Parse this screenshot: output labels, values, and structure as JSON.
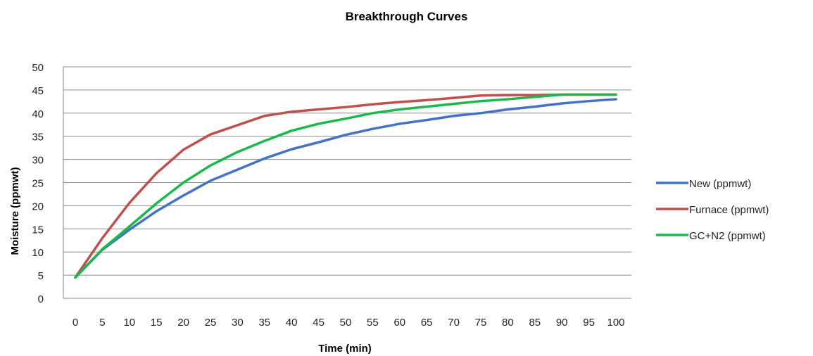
{
  "chart_data": {
    "type": "line",
    "title": "Breakthrough Curves",
    "xlabel": "Time (min)",
    "ylabel": "Moisture (ppmwt)",
    "x": [
      0,
      5,
      10,
      15,
      20,
      25,
      30,
      35,
      40,
      45,
      50,
      55,
      60,
      65,
      70,
      75,
      80,
      85,
      90,
      95,
      100
    ],
    "xlim": [
      0,
      100
    ],
    "ylim": [
      0,
      50
    ],
    "y_ticks": [
      0,
      5,
      10,
      15,
      20,
      25,
      30,
      35,
      40,
      45,
      50
    ],
    "grid": "horizontal",
    "legend_position": "right",
    "series": [
      {
        "name": "New (ppmwt)",
        "color": "#4472C4",
        "values": [
          4.5,
          10.5,
          14.8,
          18.8,
          22.2,
          25.4,
          27.8,
          30.2,
          32.2,
          33.7,
          35.3,
          36.6,
          37.7,
          38.5,
          39.4,
          40.0,
          40.8,
          41.4,
          42.1,
          42.6,
          43.0
        ]
      },
      {
        "name": "Furnace (ppmwt)",
        "color": "#C0504D",
        "values": [
          4.5,
          13.0,
          20.6,
          27.0,
          32.1,
          35.4,
          37.4,
          39.4,
          40.3,
          40.8,
          41.3,
          41.9,
          42.4,
          42.8,
          43.3,
          43.8,
          43.9,
          43.9,
          44.0,
          44.0,
          44.0
        ]
      },
      {
        "name": "GC+N2 (ppmwt)",
        "color": "#1DB84B",
        "values": [
          4.5,
          10.6,
          15.5,
          20.5,
          25.0,
          28.7,
          31.6,
          34.0,
          36.2,
          37.7,
          38.8,
          40.0,
          40.8,
          41.4,
          42.0,
          42.6,
          43.0,
          43.5,
          44.0,
          44.0,
          44.0
        ]
      }
    ]
  }
}
